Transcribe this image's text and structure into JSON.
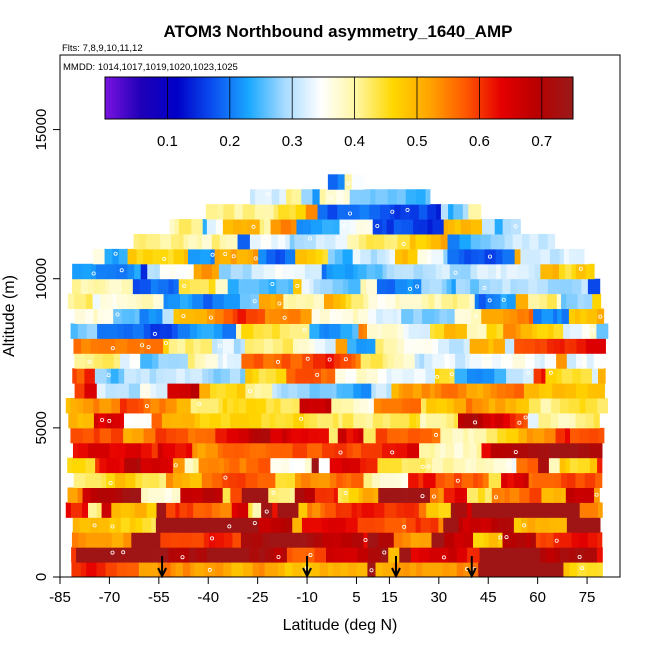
{
  "chart_data": {
    "type": "heatmap",
    "title": "ATOM3 Northbound asymmetry_1640_AMP",
    "subtitle_flights": "Flts: 7,8,9,10,11,12",
    "subtitle_dates": "MMDD: 1014,1017,1019,1020,1023,1025",
    "xlabel": "Latitude (deg N)",
    "ylabel": "Altitude (m)",
    "xlim": [
      -85,
      85
    ],
    "ylim": [
      0,
      17500
    ],
    "xticks": [
      -85,
      -70,
      -55,
      -40,
      -25,
      -10,
      5,
      15,
      30,
      45,
      60,
      75
    ],
    "yticks": [
      0,
      5000,
      10000,
      15000
    ],
    "colorbar": {
      "range": [
        0.0,
        0.75
      ],
      "ticks": [
        0.1,
        0.2,
        0.3,
        0.4,
        0.5,
        0.6,
        0.7
      ],
      "stops": [
        "#7a13e0",
        "#1f00b8",
        "#0000c8",
        "#0b50f0",
        "#1aa8ff",
        "#a8dbff",
        "#ffffff",
        "#fff6a0",
        "#ffd700",
        "#ffa500",
        "#ff5a00",
        "#e60000",
        "#b80000",
        "#9a1a1a"
      ]
    },
    "value_by_altitude": [
      {
        "altitude_m": 500,
        "value": 0.66
      },
      {
        "altitude_m": 2000,
        "value": 0.6
      },
      {
        "altitude_m": 3500,
        "value": 0.56
      },
      {
        "altitude_m": 5000,
        "value": 0.5
      },
      {
        "altitude_m": 6500,
        "value": 0.45
      },
      {
        "altitude_m": 8000,
        "value": 0.38
      },
      {
        "altitude_m": 9500,
        "value": 0.33
      },
      {
        "altitude_m": 11000,
        "value": 0.34
      },
      {
        "altitude_m": 12500,
        "value": 0.36
      }
    ],
    "coverage_ceiling_m": [
      {
        "lat": -80,
        "alt_m": 10500
      },
      {
        "lat": -70,
        "alt_m": 11000
      },
      {
        "lat": -55,
        "alt_m": 11600
      },
      {
        "lat": -40,
        "alt_m": 12300
      },
      {
        "lat": -25,
        "alt_m": 12900
      },
      {
        "lat": -10,
        "alt_m": 13200
      },
      {
        "lat": 5,
        "alt_m": 13300
      },
      {
        "lat": 15,
        "alt_m": 13000
      },
      {
        "lat": 30,
        "alt_m": 12700
      },
      {
        "lat": 45,
        "alt_m": 12200
      },
      {
        "lat": 60,
        "alt_m": 11500
      },
      {
        "lat": 75,
        "alt_m": 10800
      },
      {
        "lat": 78,
        "alt_m": 9500
      }
    ],
    "arrow_latitudes": [
      -54,
      -10,
      17,
      40
    ]
  }
}
